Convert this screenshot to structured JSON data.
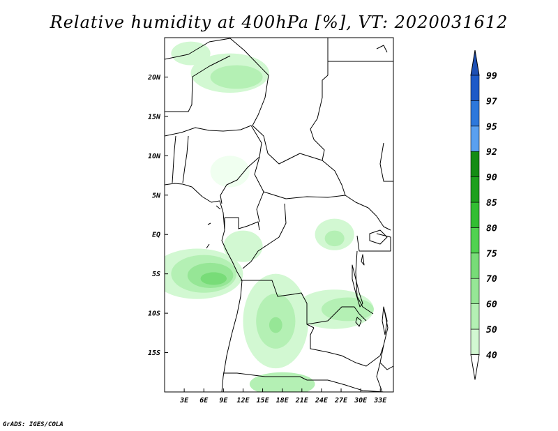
{
  "title": "Relative humidity at 400hPa [%], VT: 2020031612",
  "credit": "GrADS: IGES/COLA",
  "map": {
    "lon_range": [
      0,
      35
    ],
    "lat_range": [
      -20,
      25
    ],
    "lat_ticks": [
      {
        "value": 20,
        "label": "20N"
      },
      {
        "value": 15,
        "label": "15N"
      },
      {
        "value": 10,
        "label": "10N"
      },
      {
        "value": 5,
        "label": "5N"
      },
      {
        "value": 0,
        "label": "EQ"
      },
      {
        "value": -5,
        "label": "5S"
      },
      {
        "value": -10,
        "label": "10S"
      },
      {
        "value": -15,
        "label": "15S"
      }
    ],
    "lon_ticks": [
      {
        "value": 3,
        "label": "3E"
      },
      {
        "value": 6,
        "label": "6E"
      },
      {
        "value": 9,
        "label": "9E"
      },
      {
        "value": 12,
        "label": "12E"
      },
      {
        "value": 15,
        "label": "15E"
      },
      {
        "value": 18,
        "label": "18E"
      },
      {
        "value": 21,
        "label": "21E"
      },
      {
        "value": 24,
        "label": "24E"
      },
      {
        "value": 27,
        "label": "27E"
      },
      {
        "value": 30,
        "label": "30E"
      },
      {
        "value": 33,
        "label": "33E"
      }
    ]
  },
  "colorbar": {
    "levels": [
      {
        "label": "40",
        "color": "#f0fff0"
      },
      {
        "label": "50",
        "color": "#d2f8d2"
      },
      {
        "label": "60",
        "color": "#b4f0b4"
      },
      {
        "label": "70",
        "color": "#96e696"
      },
      {
        "label": "75",
        "color": "#78dc78"
      },
      {
        "label": "80",
        "color": "#50d250"
      },
      {
        "label": "85",
        "color": "#32be32"
      },
      {
        "label": "90",
        "color": "#1ea01e"
      },
      {
        "label": "92",
        "color": "#148c14"
      },
      {
        "label": "95",
        "color": "#5aa0f0"
      },
      {
        "label": "97",
        "color": "#2d78dc"
      },
      {
        "label": "99",
        "color": "#1e5ac8"
      }
    ],
    "top_arrow_color": "#1e50b4",
    "bottom_arrow_color": "#ffffff"
  },
  "humidity_areas": [
    {
      "name": "sahara-north",
      "lon": 4,
      "lat": 23,
      "rx": 3,
      "ry": 1.5,
      "level": 1
    },
    {
      "name": "chad-north",
      "lon": 10,
      "lat": 20.5,
      "rx": 6,
      "ry": 2.5,
      "level": 1
    },
    {
      "name": "chad-core",
      "lon": 11,
      "lat": 20,
      "rx": 4,
      "ry": 1.5,
      "level": 2
    },
    {
      "name": "nigeria",
      "lon": 10,
      "lat": 8,
      "rx": 3,
      "ry": 2,
      "level": 0
    },
    {
      "name": "gabon",
      "lon": 12,
      "lat": -1.5,
      "rx": 3,
      "ry": 2,
      "level": 1
    },
    {
      "name": "uganda",
      "lon": 26,
      "lat": 0,
      "rx": 3,
      "ry": 2,
      "level": 1
    },
    {
      "name": "uganda-core",
      "lon": 26,
      "lat": -0.5,
      "rx": 1.5,
      "ry": 1,
      "level": 2
    },
    {
      "name": "ocean-west",
      "lon": 5,
      "lat": -5,
      "rx": 7,
      "ry": 3.2,
      "level": 1
    },
    {
      "name": "ocean-west-b",
      "lon": 6,
      "lat": -5,
      "rx": 5,
      "ry": 2.4,
      "level": 2
    },
    {
      "name": "ocean-west-c",
      "lon": 7,
      "lat": -5.2,
      "rx": 3.5,
      "ry": 1.6,
      "level": 3
    },
    {
      "name": "ocean-west-d",
      "lon": 7.5,
      "lat": -5.6,
      "rx": 2,
      "ry": 0.8,
      "level": 4
    },
    {
      "name": "angola",
      "lon": 17,
      "lat": -11,
      "rx": 5,
      "ry": 6,
      "level": 1
    },
    {
      "name": "angola-b",
      "lon": 17,
      "lat": -11,
      "rx": 3,
      "ry": 3.5,
      "level": 2
    },
    {
      "name": "angola-c",
      "lon": 17,
      "lat": -11.5,
      "rx": 1,
      "ry": 1,
      "level": 3
    },
    {
      "name": "zambia",
      "lon": 26,
      "lat": -9.5,
      "rx": 6,
      "ry": 2.5,
      "level": 1
    },
    {
      "name": "zambia-b",
      "lon": 28,
      "lat": -9.5,
      "rx": 4,
      "ry": 1.5,
      "level": 2
    },
    {
      "name": "namibia",
      "lon": 18,
      "lat": -19,
      "rx": 5,
      "ry": 1.5,
      "level": 2
    }
  ]
}
